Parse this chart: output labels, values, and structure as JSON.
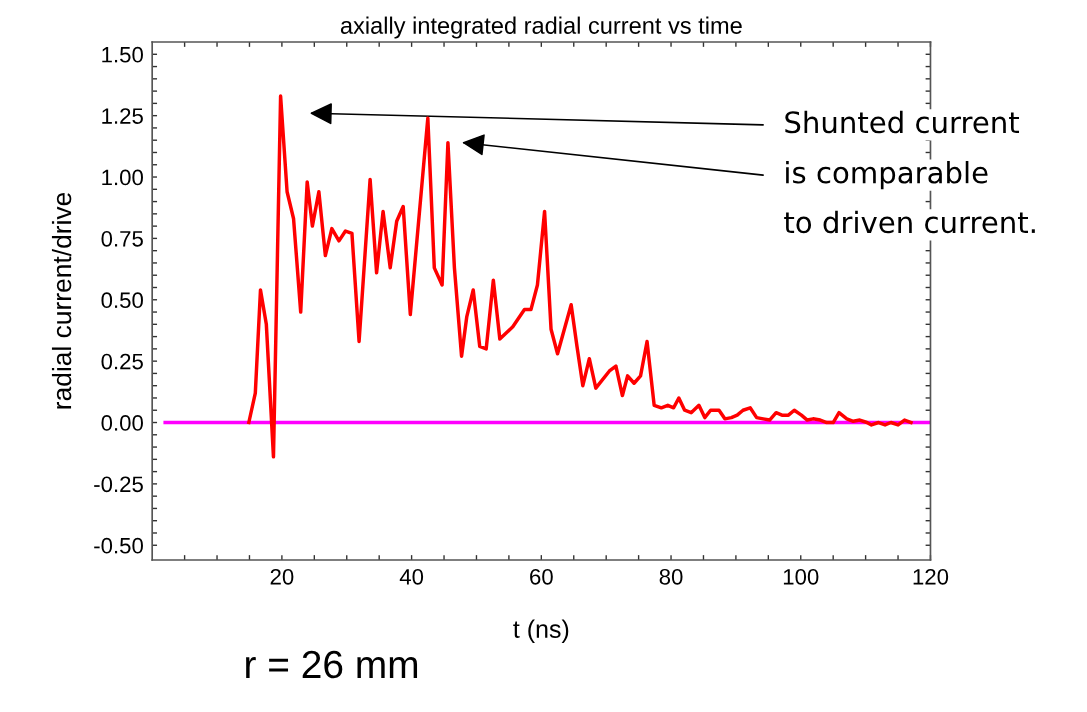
{
  "chart_data": {
    "type": "line",
    "title": "axially integrated radial current vs time",
    "xlabel": "t (ns)",
    "ylabel": "radial current/drive",
    "xlim": [
      0,
      120
    ],
    "ylim": [
      -0.56,
      1.55
    ],
    "xticks": [
      {
        "value": 5,
        "label": null
      },
      {
        "value": 10,
        "label": null
      },
      {
        "value": 15,
        "label": null
      },
      20,
      {
        "value": 25,
        "label": null
      },
      {
        "value": 30,
        "label": null
      },
      {
        "value": 35,
        "label": null
      },
      40,
      {
        "value": 45,
        "label": null
      },
      {
        "value": 50,
        "label": null
      },
      {
        "value": 55,
        "label": null
      },
      60,
      {
        "value": 65,
        "label": null
      },
      {
        "value": 70,
        "label": null
      },
      {
        "value": 75,
        "label": null
      },
      80,
      {
        "value": 85,
        "label": null
      },
      {
        "value": 90,
        "label": null
      },
      {
        "value": 95,
        "label": null
      },
      100,
      {
        "value": 105,
        "label": null
      },
      {
        "value": 110,
        "label": null
      },
      {
        "value": 115,
        "label": null
      },
      120
    ],
    "yticks": [
      {
        "value": -0.5,
        "label": "-0.50"
      },
      {
        "value": -0.45,
        "label": null
      },
      {
        "value": -0.4,
        "label": null
      },
      {
        "value": -0.35,
        "label": null
      },
      {
        "value": -0.3,
        "label": null
      },
      {
        "value": -0.25,
        "label": "-0.25"
      },
      {
        "value": -0.2,
        "label": null
      },
      {
        "value": -0.15,
        "label": null
      },
      {
        "value": -0.1,
        "label": null
      },
      {
        "value": -0.05,
        "label": null
      },
      {
        "value": 0,
        "label": "0.00"
      },
      {
        "value": 0.05,
        "label": null
      },
      {
        "value": 0.1,
        "label": null
      },
      {
        "value": 0.15,
        "label": null
      },
      {
        "value": 0.2,
        "label": null
      },
      {
        "value": 0.25,
        "label": "0.25"
      },
      {
        "value": 0.3,
        "label": null
      },
      {
        "value": 0.35,
        "label": null
      },
      {
        "value": 0.4,
        "label": null
      },
      {
        "value": 0.45,
        "label": null
      },
      {
        "value": 0.5,
        "label": "0.50"
      },
      {
        "value": 0.55,
        "label": null
      },
      {
        "value": 0.6,
        "label": null
      },
      {
        "value": 0.65,
        "label": null
      },
      {
        "value": 0.7,
        "label": null
      },
      {
        "value": 0.75,
        "label": "0.75"
      },
      {
        "value": 0.8,
        "label": null
      },
      {
        "value": 0.85,
        "label": null
      },
      {
        "value": 0.9,
        "label": null
      },
      {
        "value": 0.95,
        "label": null
      },
      {
        "value": 1.0,
        "label": "1.00"
      },
      {
        "value": 1.05,
        "label": null
      },
      {
        "value": 1.1,
        "label": null
      },
      {
        "value": 1.15,
        "label": null
      },
      {
        "value": 1.2,
        "label": null
      },
      {
        "value": 1.25,
        "label": "1.25"
      },
      {
        "value": 1.3,
        "label": null
      },
      {
        "value": 1.35,
        "label": null
      },
      {
        "value": 1.4,
        "label": null
      },
      {
        "value": 1.45,
        "label": null
      },
      {
        "value": 1.5,
        "label": "1.50"
      }
    ],
    "grid": false,
    "marker": "none",
    "line_style": "solid",
    "series": [
      {
        "color": "#ff0000",
        "x": [
          14.9,
          15.9,
          16.7,
          17.6,
          18.7,
          19.8,
          20.8,
          21.8,
          22.9,
          23.9,
          24.7,
          25.7,
          26.7,
          27.7,
          28.8,
          29.8,
          30.8,
          31.9,
          33.6,
          34.6,
          35.6,
          36.7,
          37.7,
          38.7,
          39.8,
          42.5,
          43.5,
          44.7,
          45.6,
          46.6,
          47.7,
          48.5,
          49.5,
          50.5,
          51.5,
          52.6,
          53.6,
          55.6,
          57.4,
          58.4,
          59.4,
          60.5,
          61.5,
          62.5,
          64.6,
          65.5,
          66.4,
          67.4,
          68.4,
          70.5,
          71.5,
          72.5,
          73.3,
          74.3,
          75.3,
          76.3,
          77.4,
          78.5,
          79.5,
          80.4,
          81.2,
          82.1,
          83.1,
          84.3,
          85.2,
          86.1,
          87.4,
          88.3,
          89.3,
          90.2,
          91.1,
          92.2,
          93.2,
          94.2,
          95.2,
          96.2,
          97.1,
          98.1,
          99.0,
          100.1,
          101.0,
          101.9,
          103.0,
          104.0,
          105.0,
          105.9,
          107.1,
          108.1,
          109.1,
          110.2,
          110.9,
          112.0,
          113.0,
          113.9,
          115.0,
          116.0,
          117.0
        ],
        "values": [
          0.0,
          0.12,
          0.54,
          0.4,
          -0.14,
          1.33,
          0.94,
          0.83,
          0.45,
          0.98,
          0.8,
          0.94,
          0.68,
          0.79,
          0.74,
          0.78,
          0.77,
          0.33,
          0.99,
          0.61,
          0.86,
          0.63,
          0.82,
          0.88,
          0.44,
          1.24,
          0.63,
          0.56,
          1.14,
          0.63,
          0.27,
          0.43,
          0.54,
          0.31,
          0.3,
          0.58,
          0.34,
          0.39,
          0.46,
          0.46,
          0.56,
          0.86,
          0.38,
          0.28,
          0.48,
          0.31,
          0.15,
          0.26,
          0.14,
          0.21,
          0.23,
          0.11,
          0.19,
          0.16,
          0.19,
          0.33,
          0.07,
          0.06,
          0.07,
          0.06,
          0.1,
          0.05,
          0.04,
          0.07,
          0.02,
          0.05,
          0.05,
          0.015,
          0.02,
          0.03,
          0.05,
          0.06,
          0.02,
          0.015,
          0.01,
          0.04,
          0.03,
          0.03,
          0.05,
          0.03,
          0.01,
          0.015,
          0.01,
          0.0,
          0.0,
          0.04,
          0.015,
          0.005,
          0.01,
          0.0,
          -0.01,
          0.0,
          -0.01,
          0.0,
          -0.01,
          0.01,
          0.0
        ]
      },
      {
        "color": "#ff00ff",
        "x": [
          2,
          120
        ],
        "values": [
          0,
          0
        ]
      }
    ],
    "annotations": [
      "Shunted current",
      "is comparable",
      "to driven current.",
      "r = 26 mm"
    ]
  }
}
